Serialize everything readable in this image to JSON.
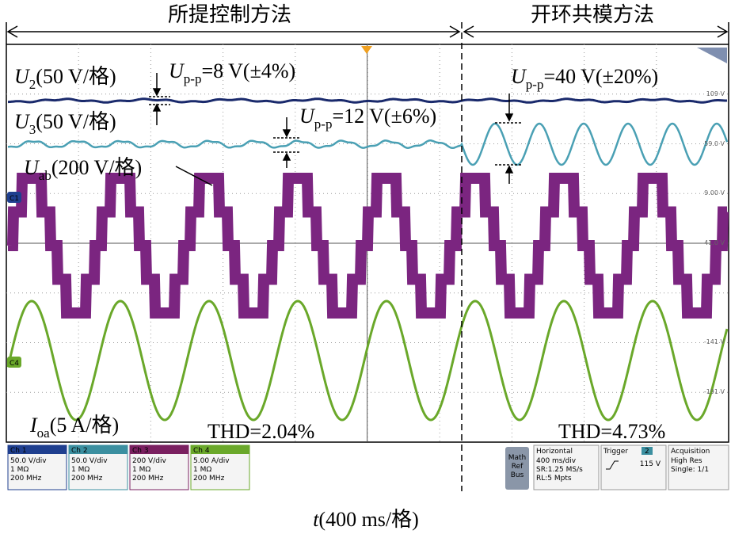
{
  "header": {
    "left": "所提控制方法",
    "right": "开环共模方法"
  },
  "annotations": [
    {
      "main": "U",
      "sub": "2",
      "rest": "(50 V/格)"
    },
    {
      "main": "U",
      "sub": "p-p",
      "rest": "=8 V(±4%)"
    },
    {
      "main": "U",
      "sub": "3",
      "rest": "(50 V/格)"
    },
    {
      "main": "U",
      "sub": "p-p",
      "rest": "=12 V(±6%)"
    },
    {
      "main": "U",
      "sub": "ab",
      "rest": "(200 V/格)"
    },
    {
      "main": "U",
      "sub": "p-p",
      "rest": "=40 V(±20%)"
    },
    {
      "main": "I",
      "sub": "oa",
      "rest": "(5 A/格)"
    }
  ],
  "thd": [
    "THD=2.04%",
    "THD=4.73%"
  ],
  "scale_labels": [
    "109 V",
    "59.0 V",
    "9.00 V",
    "-41.0 V",
    "-141 V",
    "-191 V"
  ],
  "channel_markers": [
    "C1",
    "C4"
  ],
  "channels": [
    {
      "name": "Ch 1",
      "lines": [
        "50.0 V/div",
        "1 MΩ",
        "200 MHz"
      ]
    },
    {
      "name": "Ch 2",
      "lines": [
        "50.0 V/div",
        "1 MΩ",
        "200 MHz"
      ]
    },
    {
      "name": "Ch 3",
      "lines": [
        "200 V/div",
        "1 MΩ",
        "200 MHz"
      ]
    },
    {
      "name": "Ch 4",
      "lines": [
        "5.00 A/div",
        "1 MΩ",
        "200 MHz"
      ]
    }
  ],
  "math": [
    "Math",
    "Ref",
    "Bus"
  ],
  "horizontal": {
    "title": "Horizontal",
    "lines": [
      "400 ms/div",
      "SR:1.25 MS/s",
      "RL:5 Mpts"
    ]
  },
  "trigger": {
    "title": "Trigger",
    "channel": "2",
    "level": "115 V"
  },
  "acquisition": {
    "title": "Acquisition",
    "lines": [
      "High Res",
      "Single: 1/1"
    ]
  },
  "x_label": {
    "main": "t",
    "rest": "(400 ms/格)"
  }
}
